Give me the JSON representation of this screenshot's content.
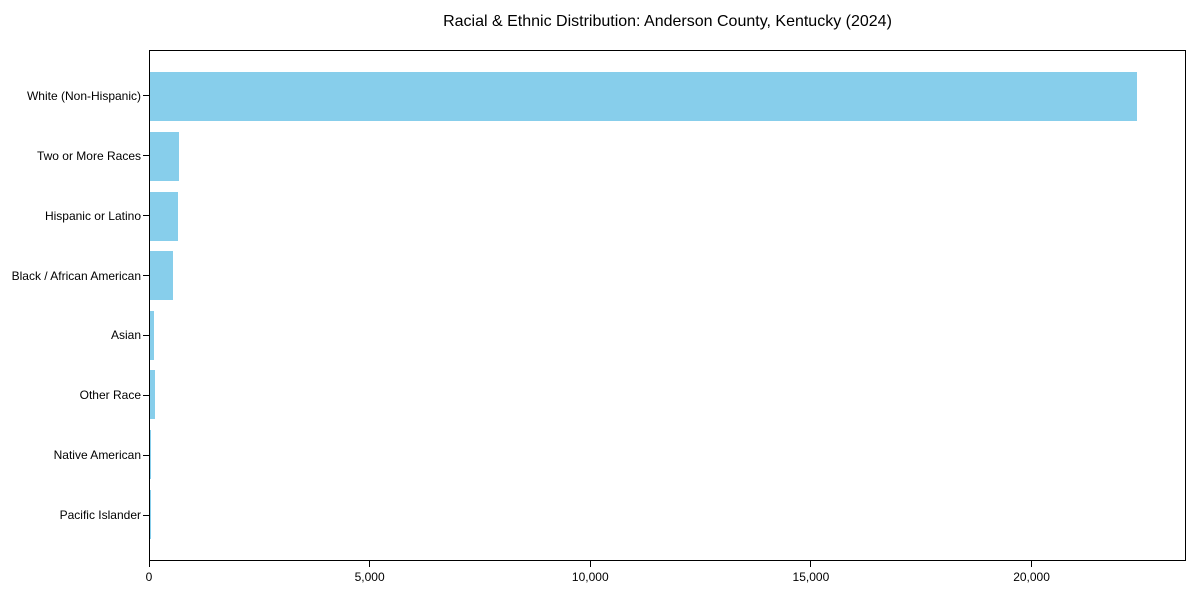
{
  "chart": {
    "title": "Racial & Ethnic Distribution: Anderson County, Kentucky (2024)"
  },
  "chart_data": {
    "type": "bar",
    "orientation": "horizontal",
    "title": "Racial & Ethnic Distribution: Anderson County, Kentucky (2024)",
    "xlabel": "",
    "ylabel": "",
    "categories": [
      "White (Non-Hispanic)",
      "Two or More Races",
      "Hispanic or Latino",
      "Black / African American",
      "Asian",
      "Other Race",
      "Native American",
      "Pacific Islander"
    ],
    "values": [
      22400,
      655,
      635,
      520,
      90,
      115,
      20,
      10
    ],
    "xlim": [
      0,
      23500
    ],
    "x_ticks": [
      0,
      5000,
      10000,
      15000,
      20000
    ],
    "x_tick_labels": [
      "0",
      "5,000",
      "10,000",
      "15,000",
      "20,000"
    ],
    "bar_color": "#87CEEB",
    "axis_color": "#000000",
    "grid": false,
    "legend": null
  }
}
